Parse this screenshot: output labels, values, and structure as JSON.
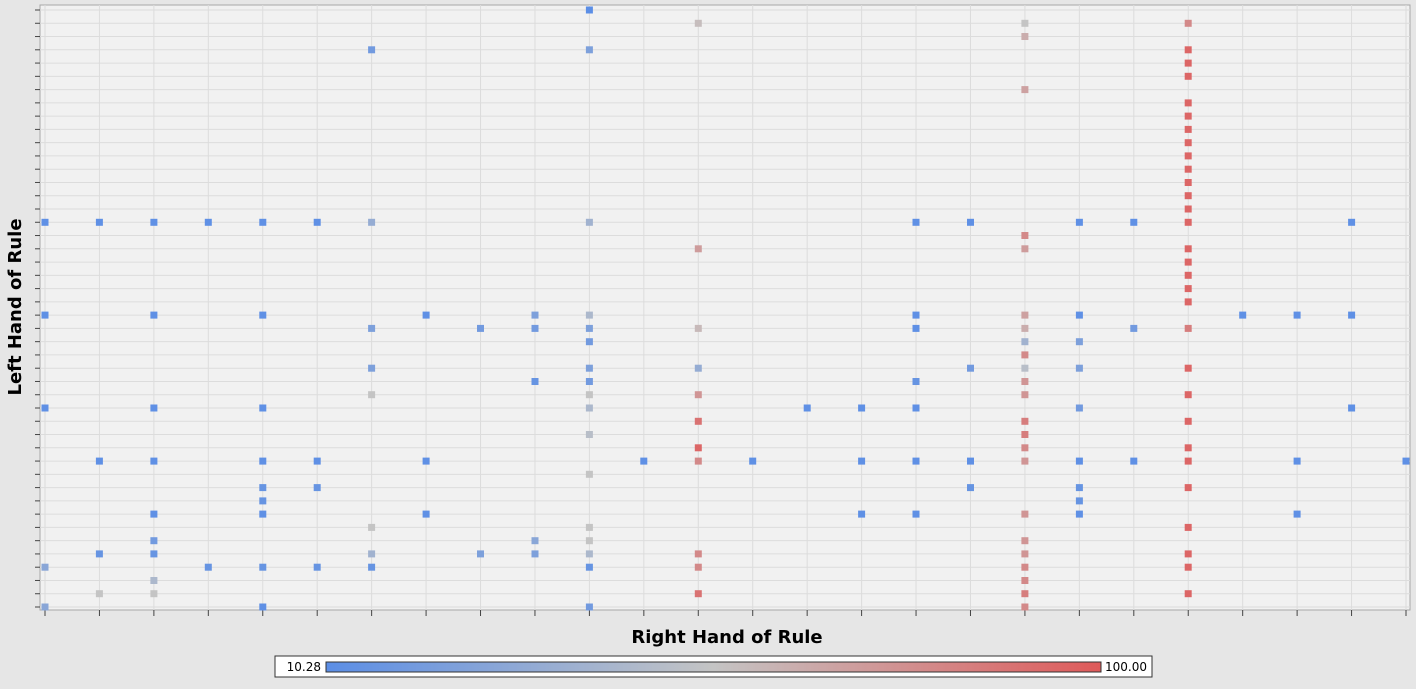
{
  "chart_data": {
    "type": "heatmap",
    "xlabel": "Right Hand of Rule",
    "ylabel": "Left Hand of Rule",
    "x_count": 26,
    "y_count": 46,
    "grid": true,
    "color_scale": {
      "min": 10.28,
      "max": 100.0,
      "min_label": "10.28",
      "max_label": "100.00",
      "min_color": "#5b8ee6",
      "mid_color": "#c4c4c4",
      "max_color": "#df5a5a"
    },
    "points": [
      {
        "x": 10,
        "y": 0,
        "v": 10.3
      },
      {
        "x": 12,
        "y": 1,
        "v": 58
      },
      {
        "x": 18,
        "y": 1,
        "v": 55
      },
      {
        "x": 21,
        "y": 1,
        "v": 80
      },
      {
        "x": 18,
        "y": 2,
        "v": 65
      },
      {
        "x": 6,
        "y": 3,
        "v": 20
      },
      {
        "x": 10,
        "y": 3,
        "v": 25
      },
      {
        "x": 21,
        "y": 3,
        "v": 95
      },
      {
        "x": 21,
        "y": 4,
        "v": 95
      },
      {
        "x": 21,
        "y": 5,
        "v": 95
      },
      {
        "x": 18,
        "y": 6,
        "v": 70
      },
      {
        "x": 21,
        "y": 7,
        "v": 95
      },
      {
        "x": 21,
        "y": 8,
        "v": 95
      },
      {
        "x": 21,
        "y": 9,
        "v": 95
      },
      {
        "x": 21,
        "y": 10,
        "v": 95
      },
      {
        "x": 21,
        "y": 11,
        "v": 95
      },
      {
        "x": 21,
        "y": 12,
        "v": 95
      },
      {
        "x": 21,
        "y": 13,
        "v": 95
      },
      {
        "x": 21,
        "y": 14,
        "v": 95
      },
      {
        "x": 21,
        "y": 15,
        "v": 95
      },
      {
        "x": 0,
        "y": 16,
        "v": 12
      },
      {
        "x": 1,
        "y": 16,
        "v": 12
      },
      {
        "x": 2,
        "y": 16,
        "v": 12
      },
      {
        "x": 3,
        "y": 16,
        "v": 12
      },
      {
        "x": 4,
        "y": 16,
        "v": 12
      },
      {
        "x": 5,
        "y": 16,
        "v": 12
      },
      {
        "x": 6,
        "y": 16,
        "v": 35
      },
      {
        "x": 10,
        "y": 16,
        "v": 40
      },
      {
        "x": 16,
        "y": 16,
        "v": 12
      },
      {
        "x": 17,
        "y": 16,
        "v": 12
      },
      {
        "x": 19,
        "y": 16,
        "v": 12
      },
      {
        "x": 20,
        "y": 16,
        "v": 12
      },
      {
        "x": 21,
        "y": 16,
        "v": 95
      },
      {
        "x": 24,
        "y": 16,
        "v": 12
      },
      {
        "x": 18,
        "y": 17,
        "v": 80
      },
      {
        "x": 12,
        "y": 18,
        "v": 72
      },
      {
        "x": 18,
        "y": 18,
        "v": 72
      },
      {
        "x": 21,
        "y": 18,
        "v": 95
      },
      {
        "x": 21,
        "y": 19,
        "v": 95
      },
      {
        "x": 21,
        "y": 20,
        "v": 95
      },
      {
        "x": 21,
        "y": 21,
        "v": 95
      },
      {
        "x": 21,
        "y": 22,
        "v": 95
      },
      {
        "x": 0,
        "y": 23,
        "v": 12
      },
      {
        "x": 2,
        "y": 23,
        "v": 12
      },
      {
        "x": 4,
        "y": 23,
        "v": 12
      },
      {
        "x": 7,
        "y": 23,
        "v": 12
      },
      {
        "x": 9,
        "y": 23,
        "v": 25
      },
      {
        "x": 10,
        "y": 23,
        "v": 45
      },
      {
        "x": 16,
        "y": 23,
        "v": 12
      },
      {
        "x": 18,
        "y": 23,
        "v": 70
      },
      {
        "x": 19,
        "y": 23,
        "v": 12
      },
      {
        "x": 22,
        "y": 23,
        "v": 12
      },
      {
        "x": 23,
        "y": 23,
        "v": 12
      },
      {
        "x": 24,
        "y": 23,
        "v": 12
      },
      {
        "x": 6,
        "y": 24,
        "v": 25
      },
      {
        "x": 8,
        "y": 24,
        "v": 20
      },
      {
        "x": 9,
        "y": 24,
        "v": 20
      },
      {
        "x": 10,
        "y": 24,
        "v": 25
      },
      {
        "x": 12,
        "y": 24,
        "v": 60
      },
      {
        "x": 16,
        "y": 24,
        "v": 12
      },
      {
        "x": 18,
        "y": 24,
        "v": 65
      },
      {
        "x": 20,
        "y": 24,
        "v": 20
      },
      {
        "x": 21,
        "y": 24,
        "v": 85
      },
      {
        "x": 10,
        "y": 25,
        "v": 20
      },
      {
        "x": 18,
        "y": 25,
        "v": 40
      },
      {
        "x": 19,
        "y": 25,
        "v": 25
      },
      {
        "x": 18,
        "y": 26,
        "v": 80
      },
      {
        "x": 6,
        "y": 27,
        "v": 25
      },
      {
        "x": 10,
        "y": 27,
        "v": 25
      },
      {
        "x": 12,
        "y": 27,
        "v": 35
      },
      {
        "x": 17,
        "y": 27,
        "v": 20
      },
      {
        "x": 18,
        "y": 27,
        "v": 50
      },
      {
        "x": 19,
        "y": 27,
        "v": 25
      },
      {
        "x": 21,
        "y": 27,
        "v": 95
      },
      {
        "x": 9,
        "y": 28,
        "v": 15
      },
      {
        "x": 10,
        "y": 28,
        "v": 20
      },
      {
        "x": 16,
        "y": 28,
        "v": 15
      },
      {
        "x": 18,
        "y": 28,
        "v": 75
      },
      {
        "x": 6,
        "y": 29,
        "v": 55
      },
      {
        "x": 10,
        "y": 29,
        "v": 55
      },
      {
        "x": 12,
        "y": 29,
        "v": 75
      },
      {
        "x": 18,
        "y": 29,
        "v": 75
      },
      {
        "x": 21,
        "y": 29,
        "v": 95
      },
      {
        "x": 0,
        "y": 30,
        "v": 12
      },
      {
        "x": 2,
        "y": 30,
        "v": 12
      },
      {
        "x": 4,
        "y": 30,
        "v": 12
      },
      {
        "x": 10,
        "y": 30,
        "v": 45
      },
      {
        "x": 14,
        "y": 30,
        "v": 12
      },
      {
        "x": 15,
        "y": 30,
        "v": 12
      },
      {
        "x": 16,
        "y": 30,
        "v": 12
      },
      {
        "x": 19,
        "y": 30,
        "v": 20
      },
      {
        "x": 24,
        "y": 30,
        "v": 12
      },
      {
        "x": 12,
        "y": 31,
        "v": 90
      },
      {
        "x": 18,
        "y": 31,
        "v": 85
      },
      {
        "x": 21,
        "y": 31,
        "v": 95
      },
      {
        "x": 10,
        "y": 32,
        "v": 50
      },
      {
        "x": 18,
        "y": 32,
        "v": 85
      },
      {
        "x": 12,
        "y": 33,
        "v": 95
      },
      {
        "x": 18,
        "y": 33,
        "v": 80
      },
      {
        "x": 21,
        "y": 33,
        "v": 95
      },
      {
        "x": 1,
        "y": 34,
        "v": 12
      },
      {
        "x": 2,
        "y": 34,
        "v": 12
      },
      {
        "x": 4,
        "y": 34,
        "v": 12
      },
      {
        "x": 5,
        "y": 34,
        "v": 12
      },
      {
        "x": 7,
        "y": 34,
        "v": 12
      },
      {
        "x": 11,
        "y": 34,
        "v": 12
      },
      {
        "x": 12,
        "y": 34,
        "v": 80
      },
      {
        "x": 13,
        "y": 34,
        "v": 12
      },
      {
        "x": 15,
        "y": 34,
        "v": 12
      },
      {
        "x": 16,
        "y": 34,
        "v": 12
      },
      {
        "x": 17,
        "y": 34,
        "v": 12
      },
      {
        "x": 18,
        "y": 34,
        "v": 75
      },
      {
        "x": 19,
        "y": 34,
        "v": 12
      },
      {
        "x": 20,
        "y": 34,
        "v": 12
      },
      {
        "x": 21,
        "y": 34,
        "v": 95
      },
      {
        "x": 23,
        "y": 34,
        "v": 12
      },
      {
        "x": 25,
        "y": 34,
        "v": 12
      },
      {
        "x": 10,
        "y": 35,
        "v": 55
      },
      {
        "x": 4,
        "y": 36,
        "v": 15
      },
      {
        "x": 5,
        "y": 36,
        "v": 15
      },
      {
        "x": 17,
        "y": 36,
        "v": 15
      },
      {
        "x": 19,
        "y": 36,
        "v": 15
      },
      {
        "x": 21,
        "y": 36,
        "v": 95
      },
      {
        "x": 4,
        "y": 37,
        "v": 15
      },
      {
        "x": 19,
        "y": 37,
        "v": 15
      },
      {
        "x": 2,
        "y": 38,
        "v": 12
      },
      {
        "x": 4,
        "y": 38,
        "v": 12
      },
      {
        "x": 7,
        "y": 38,
        "v": 12
      },
      {
        "x": 15,
        "y": 38,
        "v": 12
      },
      {
        "x": 16,
        "y": 38,
        "v": 12
      },
      {
        "x": 18,
        "y": 38,
        "v": 75
      },
      {
        "x": 19,
        "y": 38,
        "v": 12
      },
      {
        "x": 23,
        "y": 38,
        "v": 12
      },
      {
        "x": 6,
        "y": 39,
        "v": 55
      },
      {
        "x": 10,
        "y": 39,
        "v": 55
      },
      {
        "x": 21,
        "y": 39,
        "v": 95
      },
      {
        "x": 2,
        "y": 40,
        "v": 20
      },
      {
        "x": 9,
        "y": 40,
        "v": 30
      },
      {
        "x": 10,
        "y": 40,
        "v": 55
      },
      {
        "x": 18,
        "y": 40,
        "v": 75
      },
      {
        "x": 1,
        "y": 41,
        "v": 15
      },
      {
        "x": 2,
        "y": 41,
        "v": 15
      },
      {
        "x": 6,
        "y": 41,
        "v": 40
      },
      {
        "x": 8,
        "y": 41,
        "v": 25
      },
      {
        "x": 9,
        "y": 41,
        "v": 25
      },
      {
        "x": 10,
        "y": 41,
        "v": 45
      },
      {
        "x": 12,
        "y": 41,
        "v": 80
      },
      {
        "x": 18,
        "y": 41,
        "v": 75
      },
      {
        "x": 21,
        "y": 41,
        "v": 95
      },
      {
        "x": 0,
        "y": 42,
        "v": 30
      },
      {
        "x": 3,
        "y": 42,
        "v": 15
      },
      {
        "x": 4,
        "y": 42,
        "v": 15
      },
      {
        "x": 5,
        "y": 42,
        "v": 15
      },
      {
        "x": 6,
        "y": 42,
        "v": 15
      },
      {
        "x": 10,
        "y": 42,
        "v": 15
      },
      {
        "x": 12,
        "y": 42,
        "v": 80
      },
      {
        "x": 18,
        "y": 42,
        "v": 80
      },
      {
        "x": 21,
        "y": 42,
        "v": 95
      },
      {
        "x": 2,
        "y": 43,
        "v": 45
      },
      {
        "x": 18,
        "y": 43,
        "v": 80
      },
      {
        "x": 1,
        "y": 44,
        "v": 55
      },
      {
        "x": 2,
        "y": 44,
        "v": 55
      },
      {
        "x": 12,
        "y": 44,
        "v": 90
      },
      {
        "x": 18,
        "y": 44,
        "v": 85
      },
      {
        "x": 21,
        "y": 44,
        "v": 95
      },
      {
        "x": 0,
        "y": 45,
        "v": 30
      },
      {
        "x": 4,
        "y": 45,
        "v": 12
      },
      {
        "x": 10,
        "y": 45,
        "v": 20
      },
      {
        "x": 18,
        "y": 45,
        "v": 80
      }
    ]
  }
}
